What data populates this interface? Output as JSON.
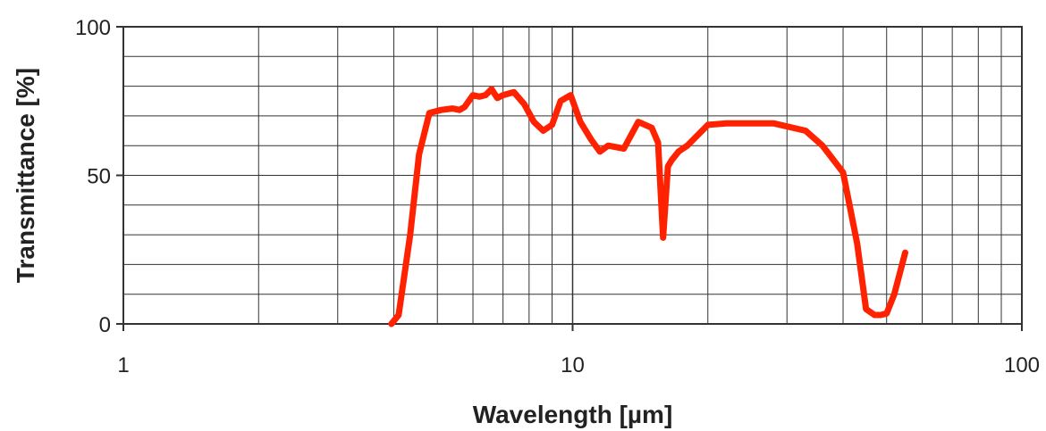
{
  "chart_data": {
    "type": "line",
    "xlabel": "Wavelength  [µm]",
    "ylabel": "Transmittance  [%]",
    "x_scale": "log",
    "xlim": [
      1,
      100
    ],
    "ylim": [
      0,
      100
    ],
    "x_ticks": [
      1,
      10,
      100
    ],
    "x_tick_labels": [
      "1",
      "10",
      "100"
    ],
    "y_ticks": [
      0,
      50,
      100
    ],
    "y_tick_labels": [
      "0",
      "50",
      "100"
    ],
    "grid": true,
    "legend": "none",
    "series": [
      {
        "color": "#ff2200",
        "x": [
          3.95,
          4.1,
          4.35,
          4.55,
          4.8,
          5.1,
          5.4,
          5.6,
          5.75,
          6.0,
          6.2,
          6.4,
          6.6,
          6.8,
          7.0,
          7.4,
          7.8,
          8.2,
          8.6,
          9.0,
          9.4,
          9.9,
          10.4,
          11.0,
          11.5,
          12.0,
          13.0,
          14.0,
          15.0,
          15.5,
          15.9,
          16.3,
          16.6,
          17.2,
          18.0,
          20.0,
          22.0,
          25.0,
          28.0,
          33.0,
          36.0,
          40.0,
          43.0,
          45.0,
          47.0,
          48.5,
          50.0,
          52.0,
          55.0
        ],
        "y": [
          0,
          3,
          30,
          57,
          71,
          72,
          72.5,
          72,
          73,
          77,
          76.5,
          77,
          79,
          76,
          77,
          78,
          74,
          68,
          65,
          67,
          75,
          77,
          68,
          62,
          58,
          60,
          59,
          68,
          66,
          61,
          29,
          53,
          55,
          58,
          60,
          67,
          67.5,
          67.5,
          67.5,
          65,
          60,
          51,
          27,
          5,
          3,
          3,
          3.5,
          10,
          24
        ]
      }
    ]
  }
}
